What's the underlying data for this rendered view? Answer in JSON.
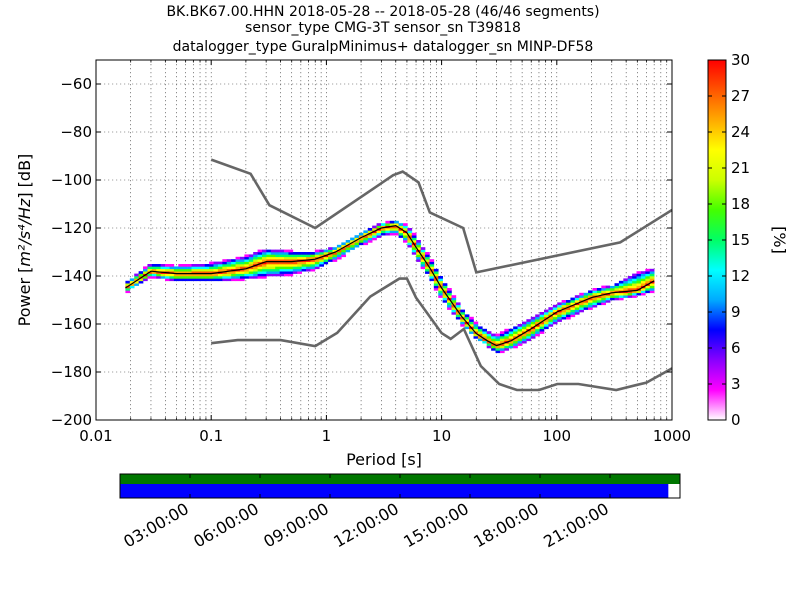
{
  "title_lines": [
    "BK.BK67.00.HHN   2018-05-28 -- 2018-05-28  (46/46 segments)",
    "sensor_type CMG-3T sensor_sn T39818",
    "datalogger_type GuralpMinimus+ datalogger_sn MINP-DF58"
  ],
  "chart_data": {
    "type": "heatmap",
    "xlabel": "Period [s]",
    "ylabel": "Power [m²/s⁴/Hz] [dB]",
    "ylabel_parts": {
      "prefix": "Power [",
      "unit": "m²/s⁴/Hz",
      "suffix": "] [dB]"
    },
    "xscale": "log",
    "xlim": [
      0.01,
      1000
    ],
    "ylim": [
      -200,
      -50
    ],
    "x_ticks": [
      0.01,
      0.1,
      1,
      10,
      100,
      1000
    ],
    "x_tick_labels": [
      "0.01",
      "0.1",
      "1",
      "10",
      "100",
      "1000"
    ],
    "y_ticks": [
      -200,
      -180,
      -160,
      -140,
      -120,
      -100,
      -80,
      -60
    ],
    "y_tick_labels": [
      "−200",
      "−180",
      "−160",
      "−140",
      "−120",
      "−100",
      "−80",
      "−60"
    ],
    "grid": true,
    "colorbar": {
      "label": "[%]",
      "range": [
        0,
        30
      ],
      "ticks": [
        0,
        3,
        6,
        9,
        12,
        15,
        18,
        21,
        24,
        27,
        30
      ],
      "tick_labels": [
        "0",
        "3",
        "6",
        "9",
        "12",
        "15",
        "18",
        "21",
        "24",
        "27",
        "30"
      ],
      "colors": [
        "#ffffff",
        "#ff00ff",
        "#8800ff",
        "#0000ff",
        "#00aaff",
        "#00ffff",
        "#00ff66",
        "#44ff00",
        "#ccff00",
        "#ffff00",
        "#ffaa00",
        "#ff5500",
        "#ff0000"
      ]
    },
    "psd_mode": {
      "period": [
        0.018,
        0.03,
        0.05,
        0.1,
        0.2,
        0.3,
        0.5,
        0.8,
        1.2,
        2,
        3,
        4,
        5,
        6,
        8,
        10,
        15,
        20,
        25,
        30,
        40,
        60,
        100,
        200,
        300,
        500,
        700
      ],
      "power": [
        -145,
        -138,
        -139,
        -139,
        -137,
        -134,
        -134,
        -133,
        -130,
        -124,
        -120,
        -119,
        -122,
        -128,
        -137,
        -145,
        -157,
        -164,
        -167,
        -169,
        -167,
        -162,
        -155,
        -149,
        -147,
        -146,
        -142
      ]
    },
    "psd_spread": {
      "period": [
        0.018,
        0.03,
        0.05,
        0.1,
        0.2,
        0.3,
        0.5,
        0.8,
        1.2,
        2,
        3,
        4,
        5,
        6,
        8,
        10,
        15,
        20,
        25,
        30,
        40,
        60,
        100,
        200,
        300,
        500,
        700
      ],
      "upper": [
        -143,
        -135,
        -136,
        -135,
        -132,
        -129,
        -130,
        -130,
        -128,
        -122,
        -118,
        -117,
        -119,
        -124,
        -133,
        -141,
        -154,
        -160,
        -163,
        -165,
        -162,
        -158,
        -152,
        -146,
        -144,
        -139,
        -137
      ],
      "lower": [
        -147,
        -140,
        -142,
        -142,
        -141,
        -140,
        -139,
        -137,
        -133,
        -127,
        -123,
        -122,
        -126,
        -132,
        -141,
        -149,
        -160,
        -166,
        -169,
        -172,
        -170,
        -166,
        -159,
        -153,
        -150,
        -148,
        -146
      ]
    },
    "nhnm": {
      "period": [
        0.1,
        0.22,
        0.32,
        0.8,
        3.8,
        4.6,
        6.3,
        7.9,
        15.4,
        20,
        354.8,
        1000
      ],
      "power": [
        -91.5,
        -97.4,
        -110.5,
        -120,
        -98,
        -96.5,
        -101,
        -113.5,
        -120,
        -138.5,
        -126,
        -112.5
      ]
    },
    "nlnm": {
      "period": [
        0.1,
        0.17,
        0.4,
        0.8,
        1.24,
        2.4,
        4.3,
        5,
        6,
        10,
        12,
        15.6,
        21.9,
        31.6,
        45,
        70,
        101,
        154,
        328,
        600,
        1000
      ],
      "power": [
        -168,
        -166.7,
        -166.7,
        -169.2,
        -163.7,
        -148.6,
        -141.1,
        -141.1,
        -149,
        -163.8,
        -166.2,
        -162.1,
        -177.5,
        -185,
        -187.5,
        -187.5,
        -185,
        -185,
        -187.5,
        -184.4,
        -178.5
      ]
    }
  },
  "timeline": {
    "tick_labels": [
      "03:00:00",
      "06:00:00",
      "09:00:00",
      "12:00:00",
      "15:00:00",
      "18:00:00",
      "21:00:00"
    ],
    "tick_hours": [
      3,
      6,
      9,
      12,
      15,
      18,
      21
    ],
    "range_hours": [
      0,
      24
    ],
    "coverage_color": "#007700",
    "used_color": "#0000ff",
    "coverage_end_hour": 24,
    "used_end_hour": 23.5
  }
}
